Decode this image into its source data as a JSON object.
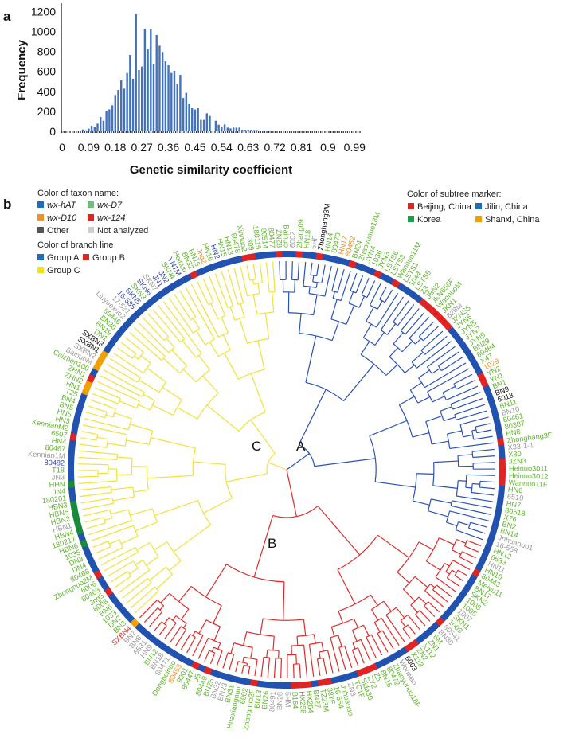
{
  "panel_a": "a",
  "panel_b": "b",
  "chart_data": [
    {
      "type": "bar",
      "title": "",
      "xlabel": "Genetic similarity coefficient",
      "ylabel": "Frequency",
      "xlim": [
        0,
        1.0
      ],
      "ylim": [
        0,
        1200
      ],
      "xticks": [
        "0",
        "0.09",
        "0.18",
        "0.27",
        "0.36",
        "0.45",
        "0.54",
        "0.63",
        "0.72",
        "0.81",
        "0.9",
        "0.99"
      ],
      "yticks": [
        "0",
        "200",
        "400",
        "600",
        "800",
        "1000",
        "1200"
      ],
      "bin_start": 0.07,
      "bin_width": 0.01,
      "values": [
        18,
        10,
        27,
        55,
        48,
        77,
        143,
        106,
        204,
        220,
        260,
        364,
        414,
        510,
        427,
        584,
        765,
        526,
        1171,
        613,
        648,
        1027,
        820,
        1025,
        674,
        964,
        857,
        794,
        703,
        661,
        584,
        605,
        470,
        565,
        334,
        385,
        276,
        231,
        218,
        231,
        114,
        114,
        180,
        154,
        5,
        106,
        66,
        45,
        69,
        37,
        29,
        37,
        37,
        37,
        15,
        15,
        15,
        15,
        12,
        12,
        8,
        8,
        8,
        8
      ],
      "bar_color": "#2f63b6"
    }
  ],
  "legend": {
    "taxon_title": "Color of taxon name:",
    "taxon": [
      {
        "label": "wx-hAT",
        "color": "#1f6fb8"
      },
      {
        "label": "wx-D7",
        "color": "#6cc07a"
      },
      {
        "label": "wx-D10",
        "color": "#f0902a"
      },
      {
        "label": "wx-124",
        "color": "#e02424"
      },
      {
        "label": "Other",
        "color": "#555555"
      },
      {
        "label": "Not analyzed",
        "color": "#cccccc"
      }
    ],
    "branch_title": "Color of branch line",
    "branch": [
      {
        "label": "Group A",
        "color": "#1f6fb8"
      },
      {
        "label": "Group B",
        "color": "#e02424"
      },
      {
        "label": "Group C",
        "color": "#f2e21a"
      }
    ],
    "marker_title": "Color of subtree marker:",
    "marker": [
      {
        "label": "Beijing, China",
        "color": "#e02424"
      },
      {
        "label": "Jilin, China",
        "color": "#1f6fb8"
      },
      {
        "label": "Korea",
        "color": "#1aa04a"
      },
      {
        "label": "Shanxi, China",
        "color": "#f0a000"
      }
    ]
  },
  "groups": {
    "A": "A",
    "B": "B",
    "C": "C"
  },
  "colors": {
    "name": {
      "g": "#5fb62c",
      "o": "#f0902a",
      "b": "#3346a8",
      "k": "#111111",
      "gr": "#9a9a9a",
      "r": "#e02424"
    },
    "marker": {
      "b": "#2152b0",
      "r": "#e02424",
      "gn": "#1a8a3a",
      "o": "#f0a000"
    },
    "branch": {
      "A": "#2a52b8",
      "B": "#e02a2a",
      "C": "#f0e23a"
    }
  },
  "tree": {
    "A": [
      [
        "ZNZ8",
        "g",
        "r"
      ],
      [
        "Bainuo",
        "g",
        "b"
      ],
      [
        "6002",
        "gr",
        "b"
      ],
      [
        "Zhang09",
        "g",
        "r"
      ],
      [
        "HN18",
        "g",
        "b"
      ],
      [
        "5HF",
        "gr",
        "b"
      ],
      [
        "Zhonghang3M",
        "k",
        "r"
      ],
      [
        "HN14",
        "g",
        "b"
      ],
      [
        "80470",
        "g",
        "b"
      ],
      [
        "HN17",
        "o",
        "b"
      ],
      [
        "80452",
        "o",
        "b"
      ],
      [
        "BN24",
        "g",
        "r"
      ],
      [
        "Zhaoyunuo18M",
        "g",
        "b"
      ],
      [
        "JYN4",
        "g",
        "b"
      ],
      [
        "1036",
        "g",
        "b"
      ],
      [
        "JYN3",
        "g",
        "r"
      ],
      [
        "LSTS6",
        "g",
        "b"
      ],
      [
        "LSTS3",
        "g",
        "b"
      ],
      [
        "Wannuo11M",
        "g",
        "r"
      ],
      [
        "LSTS1",
        "g",
        "b"
      ],
      [
        "1044",
        "g",
        "b"
      ],
      [
        "LSTS5",
        "g",
        "b"
      ],
      [
        "Z3",
        "g",
        "b"
      ],
      [
        "JBN2",
        "g",
        "r"
      ],
      [
        "JKN656F",
        "g",
        "r"
      ],
      [
        "WannuoM",
        "g",
        "r"
      ],
      [
        "JKN1",
        "g",
        "r"
      ],
      [
        "628M",
        "gr",
        "r"
      ],
      [
        "JKNS5",
        "g",
        "r"
      ],
      [
        "JYN6",
        "g",
        "b"
      ],
      [
        "JYN5",
        "g",
        "b"
      ],
      [
        "JYN7",
        "g",
        "b"
      ],
      [
        "JYN9",
        "g",
        "b"
      ],
      [
        "BN29",
        "g",
        "b"
      ],
      [
        "80484",
        "g",
        "b"
      ],
      [
        "X47",
        "g",
        "b"
      ],
      [
        "1029",
        "o",
        "b"
      ],
      [
        "YN2",
        "g",
        "r"
      ],
      [
        "YN1",
        "g",
        "r"
      ],
      [
        "BN1",
        "g",
        "b"
      ],
      [
        "BN9",
        "k",
        "b"
      ],
      [
        "6013",
        "k",
        "b"
      ],
      [
        "BN11",
        "g",
        "b"
      ],
      [
        "BN10",
        "gr",
        "b"
      ],
      [
        "80461",
        "g",
        "b"
      ],
      [
        "80387",
        "g",
        "b"
      ],
      [
        "HN8",
        "g",
        "b"
      ],
      [
        "Zhonghang3F",
        "g",
        "r"
      ],
      [
        "X33-1-1",
        "gr",
        "b"
      ],
      [
        "X80",
        "g",
        "b"
      ],
      [
        "JZN3",
        "g",
        "r"
      ],
      [
        "Heinuo3011",
        "g",
        "r"
      ],
      [
        "Heinuo3012",
        "g",
        "r"
      ],
      [
        "Wannuo11F",
        "g",
        "r"
      ],
      [
        "HN6",
        "g",
        "b"
      ],
      [
        "6510",
        "gr",
        "b"
      ],
      [
        "HN7",
        "g",
        "b"
      ],
      [
        "80518",
        "g",
        "b"
      ],
      [
        "X76",
        "g",
        "b"
      ],
      [
        "BN2",
        "g",
        "b"
      ],
      [
        "BN14",
        "g",
        "b"
      ],
      [
        "Jnhuanuo1",
        "gr",
        "b"
      ],
      [
        "16-558",
        "gr",
        "b"
      ]
    ],
    "B": [
      [
        "HN12",
        "g",
        "b"
      ],
      [
        "6533",
        "g",
        "b"
      ],
      [
        "HN11",
        "gr",
        "b"
      ],
      [
        "HN10",
        "g",
        "b"
      ],
      [
        "80443",
        "g",
        "r"
      ],
      [
        "Meiyu11",
        "g",
        "b"
      ],
      [
        "BN17",
        "g",
        "b"
      ],
      [
        "SKN2",
        "g",
        "b"
      ],
      [
        "1008",
        "g",
        "b"
      ],
      [
        "1005",
        "g",
        "b"
      ],
      [
        "1007",
        "gr",
        "b"
      ],
      [
        "SKN1",
        "g",
        "b"
      ],
      [
        "1003",
        "g",
        "b"
      ],
      [
        "80541",
        "gr",
        "r"
      ],
      [
        "BN30",
        "gr",
        "b"
      ],
      [
        "6M",
        "g",
        "b"
      ],
      [
        "ZN1",
        "g",
        "b"
      ],
      [
        "X112",
        "g",
        "b"
      ],
      [
        "ZN2",
        "g",
        "r"
      ],
      [
        "X113",
        "g",
        "r"
      ],
      [
        "6003",
        "k",
        "b"
      ],
      [
        "Wenwan",
        "gr",
        "b"
      ],
      [
        "Zhaoyunuo18F",
        "g",
        "b"
      ],
      [
        "80472",
        "g",
        "b"
      ],
      [
        "BN16",
        "g",
        "b"
      ],
      [
        "Z5",
        "g",
        "r"
      ],
      [
        "ZY2",
        "g",
        "r"
      ],
      [
        "Sida30",
        "g",
        "r"
      ],
      [
        "TC1F",
        "g",
        "b"
      ],
      [
        "ZN3",
        "gr",
        "b"
      ],
      [
        "Jnhuanuo",
        "g",
        "b"
      ],
      [
        "16-554",
        "g",
        "b"
      ],
      [
        "387F",
        "g",
        "r"
      ],
      [
        "TZ23M",
        "g",
        "r"
      ],
      [
        "BN27",
        "g",
        "b"
      ],
      [
        "HX264",
        "g",
        "r"
      ],
      [
        "HX258",
        "g",
        "r"
      ],
      [
        "B164",
        "g",
        "r"
      ],
      [
        "5HM",
        "gr",
        "b"
      ],
      [
        "BN28",
        "gr",
        "b"
      ],
      [
        "80491",
        "gr",
        "b"
      ],
      [
        "BN26",
        "g",
        "b"
      ],
      [
        "BN13",
        "g",
        "b"
      ],
      [
        "Zhongnuo2F",
        "g",
        "r"
      ],
      [
        "6902",
        "g",
        "b"
      ],
      [
        "Huaxiangnuo",
        "g",
        "b"
      ],
      [
        "BN31",
        "g",
        "b"
      ],
      [
        "BN23",
        "gr",
        "b"
      ],
      [
        "BN22",
        "gr",
        "b"
      ],
      [
        "BN25",
        "g",
        "b"
      ],
      [
        "80449",
        "g",
        "r"
      ],
      [
        "JB",
        "g",
        "b"
      ],
      [
        "80447",
        "g",
        "r"
      ],
      [
        "9901",
        "g",
        "b"
      ],
      [
        "80453",
        "o",
        "b"
      ],
      [
        "Dongbeinuo",
        "g",
        "b"
      ],
      [
        "80471",
        "gr",
        "b"
      ],
      [
        "BN18",
        "gr",
        "b"
      ],
      [
        "BN12",
        "g",
        "b"
      ],
      [
        "HN9",
        "gr",
        "b"
      ],
      [
        "6531",
        "gr",
        "b"
      ],
      [
        "BN8",
        "gr",
        "b"
      ],
      [
        "BN7",
        "gr",
        "b"
      ],
      [
        "SXBN4",
        "r",
        "o"
      ]
    ],
    "C": [
      [
        "BN3",
        "g",
        "b"
      ],
      [
        "DN2",
        "g",
        "b"
      ],
      [
        "1033",
        "g",
        "b"
      ],
      [
        "BN6",
        "g",
        "b"
      ],
      [
        "6008",
        "g",
        "b"
      ],
      [
        "Jng5",
        "g",
        "r"
      ],
      [
        "80463",
        "g",
        "b"
      ],
      [
        "6006",
        "g",
        "b"
      ],
      [
        "Zhongnuo2M",
        "g",
        "r"
      ],
      [
        "80466",
        "g",
        "b"
      ],
      [
        "DN4",
        "g",
        "b"
      ],
      [
        "DN3",
        "g",
        "b"
      ],
      [
        "1035",
        "g",
        "b"
      ],
      [
        "HBN6",
        "g",
        "gn"
      ],
      [
        "180217",
        "g",
        "b"
      ],
      [
        "HBN4",
        "g",
        "gn"
      ],
      [
        "HBN1",
        "gr",
        "gn"
      ],
      [
        "HBN2",
        "g",
        "gn"
      ],
      [
        "HBN5",
        "g",
        "gn"
      ],
      [
        "HBN3",
        "g",
        "gn"
      ],
      [
        "180201",
        "g",
        "b"
      ],
      [
        "JN4",
        "g",
        "b"
      ],
      [
        "HHN",
        "g",
        "gn"
      ],
      [
        "JN3",
        "gr",
        "b"
      ],
      [
        "T18",
        "g",
        "b"
      ],
      [
        "80482",
        "b",
        "b"
      ],
      [
        "Kennian1M",
        "gr",
        "b"
      ],
      [
        "80467",
        "g",
        "b"
      ],
      [
        "HN4",
        "g",
        "b"
      ],
      [
        "6507",
        "g",
        "r"
      ],
      [
        "KennianM2",
        "g",
        "b"
      ],
      [
        "HN3",
        "g",
        "b"
      ],
      [
        "HN5",
        "g",
        "b"
      ],
      [
        "BN5",
        "g",
        "b"
      ],
      [
        "BN4",
        "g",
        "b"
      ],
      [
        "T25",
        "g",
        "b"
      ],
      [
        "HN1",
        "g",
        "o"
      ],
      [
        "ZHN2",
        "g",
        "o"
      ],
      [
        "ZHN1",
        "g",
        "r"
      ],
      [
        "Caizhen100",
        "g",
        "b"
      ],
      [
        "BainuoM",
        "gr",
        "o"
      ],
      [
        "SXBN2",
        "gr",
        "o"
      ],
      [
        "SXBN1",
        "k",
        "o"
      ],
      [
        "SXBN3",
        "k",
        "b"
      ],
      [
        "DN1",
        "g",
        "b"
      ],
      [
        "BN19",
        "g",
        "b"
      ],
      [
        "BN20",
        "g",
        "b"
      ],
      [
        "80446",
        "g",
        "b"
      ],
      [
        "Liuyuexue2",
        "gr",
        "b"
      ],
      [
        "17-521",
        "gr",
        "b"
      ],
      [
        "16-585",
        "b",
        "b"
      ],
      [
        "SKN5",
        "b",
        "b"
      ],
      [
        "SKN3",
        "g",
        "b"
      ],
      [
        "SKN6",
        "b",
        "b"
      ],
      [
        "SKN7",
        "gr",
        "b"
      ],
      [
        "JN1",
        "b",
        "b"
      ],
      [
        "JN2",
        "b",
        "b"
      ],
      [
        "SKN4",
        "g",
        "b"
      ],
      [
        "YN1M",
        "b",
        "b"
      ],
      [
        "Heinuo",
        "g",
        "b"
      ],
      [
        "BN32",
        "g",
        "r"
      ],
      [
        "BN15",
        "g",
        "b"
      ],
      [
        "Jng2",
        "o",
        "b"
      ],
      [
        "HN16",
        "g",
        "b"
      ],
      [
        "HN2",
        "b",
        "b"
      ],
      [
        "HN15",
        "g",
        "b"
      ],
      [
        "HN13",
        "g",
        "b"
      ],
      [
        "80478",
        "g",
        "b"
      ],
      [
        "Xinnuo2",
        "g",
        "r"
      ],
      [
        "309",
        "g",
        "r"
      ],
      [
        "180115",
        "g",
        "b"
      ],
      [
        "80514",
        "g",
        "b"
      ],
      [
        "80477",
        "g",
        "b"
      ]
    ]
  }
}
